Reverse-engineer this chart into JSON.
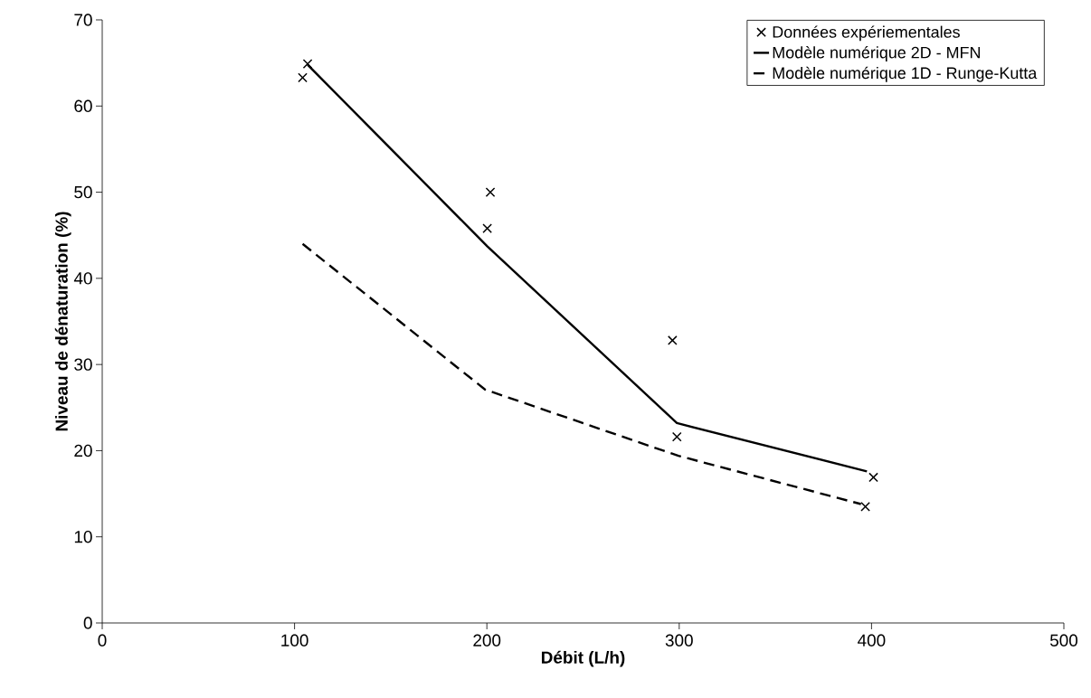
{
  "chart_data": {
    "type": "line",
    "xlabel": "Débit (L/h)",
    "ylabel": "Niveau de dénaturation (%)",
    "xlim": [
      0,
      500
    ],
    "xticks": [
      0,
      100,
      200,
      300,
      400,
      500
    ],
    "ylim": [
      0,
      70
    ],
    "yticks": [
      0,
      10,
      20,
      30,
      40,
      50,
      60,
      70
    ],
    "legend": "top right",
    "series": [
      {
        "name": "Données expériementales",
        "type": "scatter",
        "marker": "cross",
        "color": "#000000",
        "x": [
          104.2,
          106.8,
          201.8,
          200.2,
          296.5,
          298.8,
          401,
          396.8
        ],
        "values": [
          63.3,
          64.9,
          50.0,
          45.8,
          32.8,
          21.6,
          16.9,
          13.5
        ]
      },
      {
        "name": "Modèle numérique 2D - MFN",
        "type": "line",
        "line_style": "solid",
        "color": "#000000",
        "x": [
          106.8,
          200.3,
          298.8,
          397.6
        ],
        "values": [
          64.8,
          43.7,
          23.2,
          17.6
        ]
      },
      {
        "name": "Modèle numérique 1D - Runge-Kutta",
        "type": "line",
        "line_style": "dashed",
        "color": "#000000",
        "x": [
          104.2,
          199,
          299.6,
          394.5
        ],
        "values": [
          44.0,
          27.1,
          19.4,
          13.8
        ]
      }
    ]
  }
}
